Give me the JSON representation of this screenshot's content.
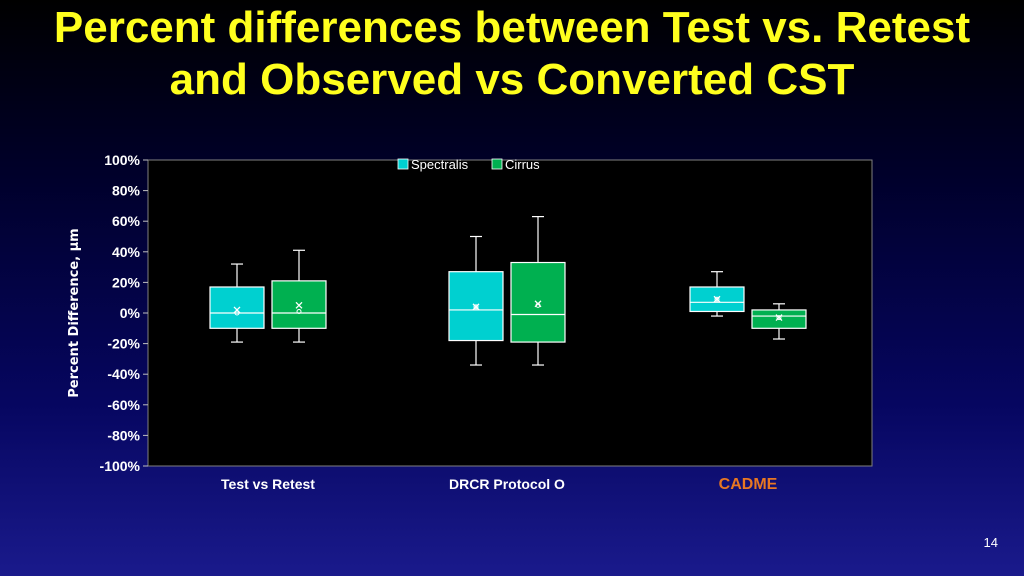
{
  "slide": {
    "title_line1": "Percent differences between Test vs. Retest",
    "title_line2": "and Observed vs Converted CST",
    "page_number": "14"
  },
  "chart_data": {
    "type": "box",
    "ylabel": "Percent Difference, µm",
    "ylim": [
      -100,
      100
    ],
    "yticks": [
      100,
      80,
      60,
      40,
      20,
      0,
      -20,
      -40,
      -60,
      -80,
      -100
    ],
    "ytick_labels": [
      "100%",
      "80%",
      "60%",
      "40%",
      "20%",
      "0%",
      "-20%",
      "-40%",
      "-60%",
      "-80%",
      "-100%"
    ],
    "categories": [
      "Test vs Retest",
      "DRCR Protocol O",
      "CADME"
    ],
    "category_colors": [
      "#ffffff",
      "#ffffff",
      "#e87722"
    ],
    "legend": {
      "placement": "top-center"
    },
    "series": [
      {
        "name": "Spectralis",
        "color": "#00d0d0",
        "boxes": [
          {
            "min": -19,
            "q1": -10,
            "median": 0,
            "q3": 17,
            "max": 32,
            "mean": 2,
            "outlier_marker": 0
          },
          {
            "min": -34,
            "q1": -18,
            "median": 2,
            "q3": 27,
            "max": 50,
            "mean": 4,
            "outlier_marker": 4
          },
          {
            "min": -2,
            "q1": 1,
            "median": 7,
            "q3": 17,
            "max": 27,
            "mean": 9,
            "outlier_marker": 9
          }
        ]
      },
      {
        "name": "Cirrus",
        "color": "#00b050",
        "boxes": [
          {
            "min": -19,
            "q1": -10,
            "median": 0,
            "q3": 21,
            "max": 41,
            "mean": 5,
            "outlier_marker": 1
          },
          {
            "min": -34,
            "q1": -19,
            "median": -1,
            "q3": 33,
            "max": 63,
            "mean": 6,
            "outlier_marker": 5
          },
          {
            "min": -17,
            "q1": -10,
            "median": -2,
            "q3": 2,
            "max": 6,
            "mean": -3,
            "outlier_marker": -3
          }
        ]
      }
    ]
  }
}
